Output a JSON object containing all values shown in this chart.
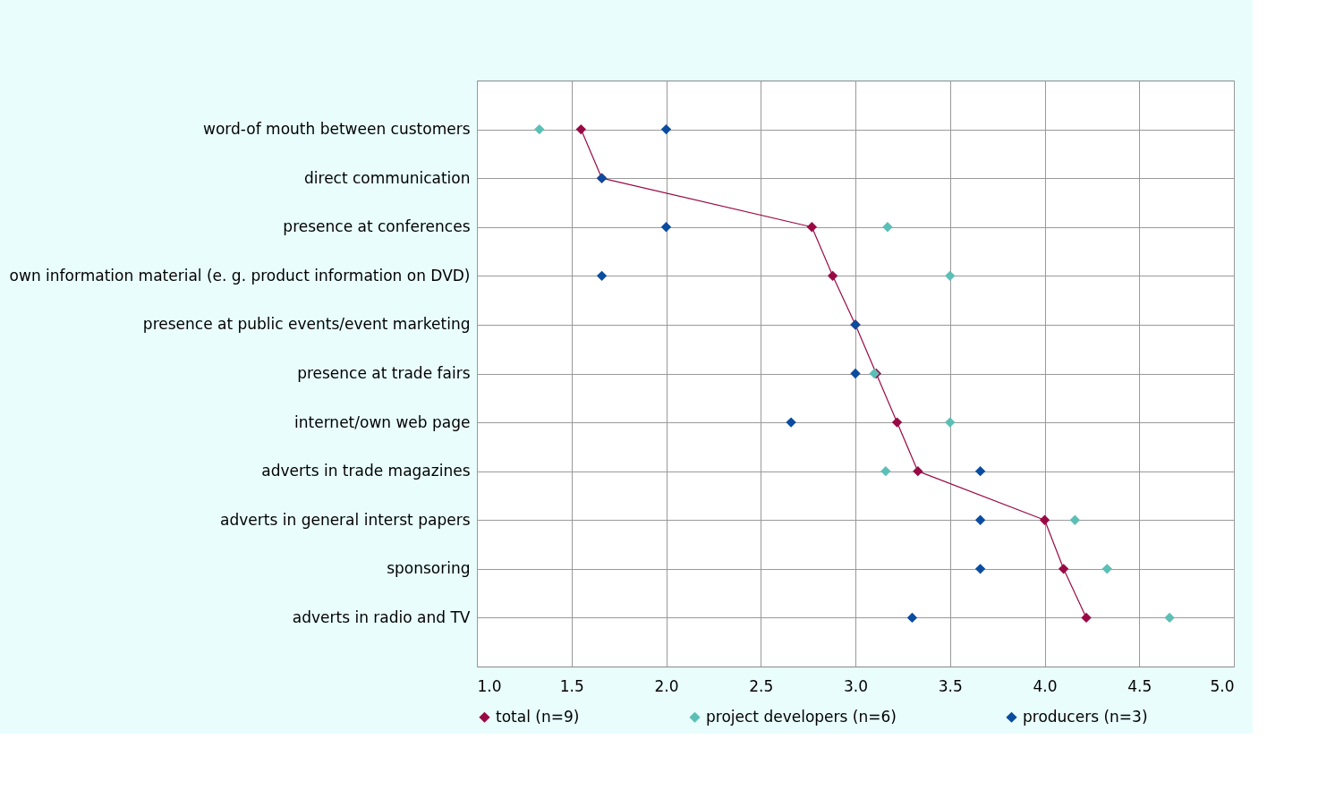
{
  "chart_data": {
    "type": "scatter",
    "categories": [
      "word-of mouth between customers",
      "direct communication",
      "presence at conferences",
      "own information material (e. g. product information on DVD)",
      "presence at public events/event marketing",
      "presence at trade fairs",
      "internet/own web page",
      "adverts in trade magazines",
      "adverts in general interst papers",
      "sponsoring",
      "adverts in radio  and TV"
    ],
    "orientation": "horizontal",
    "series": [
      {
        "name": "total (n=9)",
        "type": "line",
        "color": "#990a45",
        "values": [
          1.55,
          1.66,
          2.77,
          2.88,
          3.0,
          3.11,
          3.22,
          3.33,
          4.0,
          4.1,
          4.22
        ]
      },
      {
        "name": "project developers (n=6)",
        "color": "#5cbfb6",
        "values": [
          1.33,
          null,
          3.17,
          3.5,
          null,
          3.1,
          3.5,
          3.16,
          4.16,
          4.33,
          4.66
        ]
      },
      {
        "name": "producers (n=3)",
        "color": "#0a4ca0",
        "values": [
          2.0,
          1.66,
          2.0,
          1.66,
          3.0,
          3.0,
          2.66,
          3.66,
          3.66,
          3.66,
          3.3
        ]
      }
    ],
    "xlim": [
      1.0,
      5.0
    ],
    "xticks": [
      {
        "value": 1.0,
        "label": "1.0"
      },
      {
        "value": 1.5,
        "label": "1.5"
      },
      {
        "value": 2.0,
        "label": "2.0"
      },
      {
        "value": 2.5,
        "label": "2.5"
      },
      {
        "value": 3.0,
        "label": "3.0"
      },
      {
        "value": 3.5,
        "label": "3.5"
      },
      {
        "value": 4.0,
        "label": "4.0"
      },
      {
        "value": 4.5,
        "label": "4.5"
      },
      {
        "value": 5.0,
        "label": "5.0"
      }
    ],
    "grid": true,
    "legend": "bottom",
    "marker": "diamond",
    "line_style": "solid"
  }
}
